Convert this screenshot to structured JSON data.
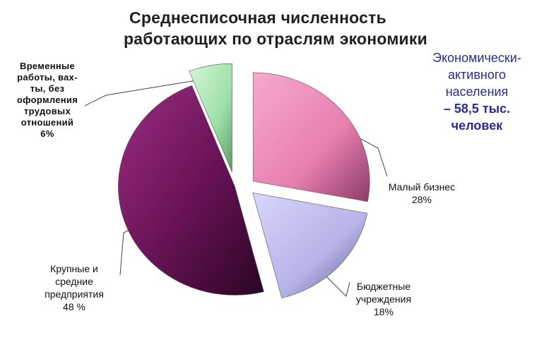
{
  "chart_data": {
    "type": "pie",
    "title_lines": [
      "Среднесписочная численность",
      "работающих по отраслям экономики"
    ],
    "slices": [
      {
        "label_lines": [
          "Малый бизнес",
          "28%"
        ],
        "value": 28,
        "color": "#e77fb0"
      },
      {
        "label_lines": [
          "Бюджетные",
          "учреждения",
          "18%"
        ],
        "value": 18,
        "color": "#b6b3e8"
      },
      {
        "label_lines": [
          "Крупные и",
          "средние",
          "предприятия",
          "48 %"
        ],
        "value": 48,
        "color": "#6b1358"
      },
      {
        "label_lines": [
          "Временные",
          "работы, вах-",
          "ты, без",
          "оформления",
          "трудовых",
          "отношений",
          "6%"
        ],
        "value": 6,
        "color": "#9fe0a8"
      }
    ]
  },
  "note_lines": [
    "Экономически-",
    "активного",
    "населения",
    "– 58,5 тыс.",
    "человек"
  ]
}
